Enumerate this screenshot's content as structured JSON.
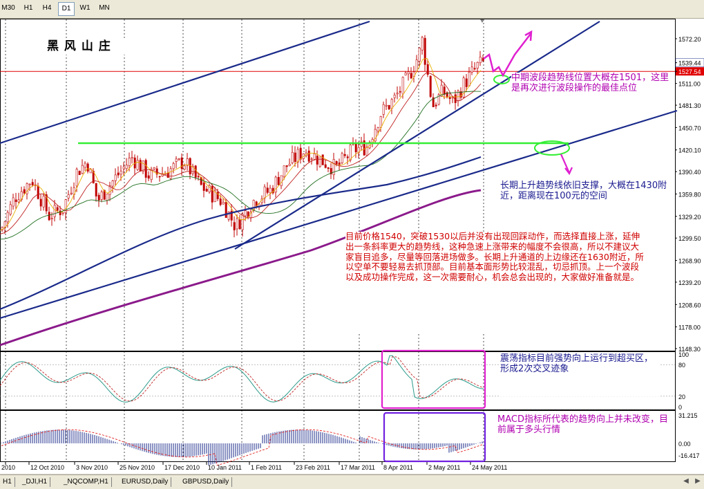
{
  "toolbar": {
    "timeframes": [
      {
        "label": "M30",
        "active": false
      },
      {
        "label": "H1",
        "active": false
      },
      {
        "label": "H4",
        "active": false
      },
      {
        "label": "D1",
        "active": true
      },
      {
        "label": "W1",
        "active": false
      },
      {
        "label": "MN",
        "active": false
      }
    ]
  },
  "chart": {
    "watermark": "黑 风 山 庄",
    "price_axis": [
      "1572.20",
      "1539.44",
      "1527.54",
      "1511.00",
      "1481.30",
      "1450.70",
      "1420.10",
      "1390.40",
      "1359.80",
      "1329.20",
      "1299.50",
      "1268.90",
      "1239.20",
      "1208.60",
      "1178.00",
      "1148.30"
    ],
    "current_price": "1539.44",
    "current_price_color": "#000000",
    "line_price": "1527.54",
    "line_price_color": "#e00000",
    "date_axis": [
      "2010",
      "12 Oct 2010",
      "3 Nov 2010",
      "25 Nov 2010",
      "17 Dec 2010",
      "10 Jan 2011",
      "1 Feb 2011",
      "23 Feb 2011",
      "17 Mar 2011",
      "8 Apr 2011",
      "2 May 2011",
      "24 May 2011"
    ],
    "stoch_axis": [
      "100",
      "80",
      "20",
      "0"
    ],
    "macd_axis": [
      "31.215",
      "0.00",
      "-16.417"
    ],
    "colors": {
      "bull_candle": "#c00000",
      "bear_candle": "#c00000",
      "trendline": "#1a2a8a",
      "support": "#33ee33",
      "ma_long": "#8b1a8b",
      "annotation_red": "#d00000",
      "annotation_blue": "#1a1a90",
      "annotation_purple": "#b000b0",
      "stoch_highlight": "#e020d0",
      "macd_highlight": "#7020e0"
    }
  },
  "annotations": {
    "mid_trend": "中期波段趋势线位置大概在1501，这里是再次进行波段操作的最佳点位",
    "long_trend": "长期上升趋势线依旧支撑，大概在1430附近，距离现在100元的空间",
    "main": "目前价格1540，突破1530以后并没有出现回踩动作，而选择直接上涨，延伸出一条斜率更大的趋势线，这种急速上涨带来的幅度不会很高，所以不建议大家盲目追多，尽量等回落进场做多。长期上升通道的上边缘还在1630附近，所以空单不要轻易去抓顶部。目前基本面形势比较混乱，切忌抓顶。上一个波段以及成功操作完成，这一次需要耐心，机会总会出现的，大家做好准备就是。",
    "stoch": "震荡指标目前强势向上运行到超买区，形成2次交叉迹象",
    "macd": "MACD指标所代表的趋势向上并未改变，目前属于多头行情"
  },
  "tabs": [
    "H1",
    "_DJI,H1",
    "_NQCOMP,H1",
    "EURUSD,Daily",
    "GBPUSD,Daily"
  ]
}
